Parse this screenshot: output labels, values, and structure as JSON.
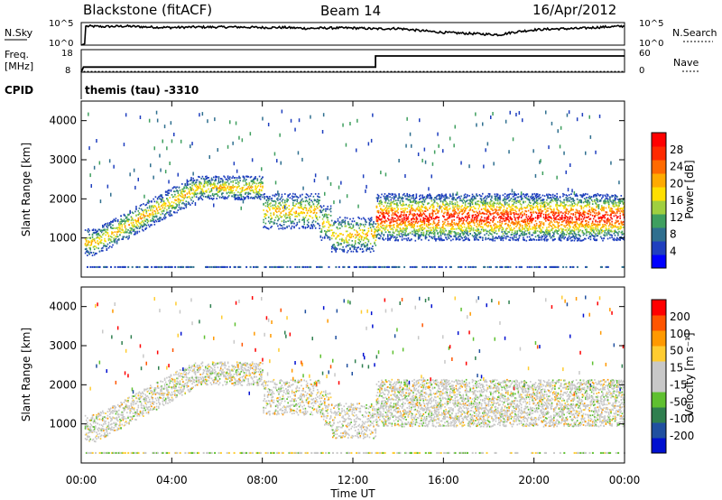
{
  "header": {
    "station": "Blackstone (fitACF)",
    "beam": "Beam 14",
    "date": "16/Apr/2012"
  },
  "cpid": {
    "label": "CPID",
    "value": "themis (tau) -3310"
  },
  "colors": {
    "power_scale": [
      "#0000ff",
      "#1f3fbf",
      "#2f6f8f",
      "#3f9f5f",
      "#9fcf3f",
      "#ffdf00",
      "#ffaa00",
      "#ff6a00",
      "#ff2a00",
      "#ff0000"
    ],
    "velocity_scale": [
      "#0010d0",
      "#2050a0",
      "#2f7f4f",
      "#5fc030",
      "#c8c8c8",
      "#c8c8c8",
      "#ffcc30",
      "#ff9900",
      "#ff5500",
      "#ff0000"
    ]
  },
  "chart_data": [
    {
      "type": "line",
      "name": "noise-panel",
      "left_label": "N.Sky",
      "right_label": "N.Search",
      "left_ticks": [
        "10^5",
        "10^0"
      ],
      "right_ticks": [
        "10^5",
        "10^0"
      ],
      "x_hours": [
        0,
        0.15,
        0.2,
        1,
        2,
        3,
        4,
        5,
        6,
        7,
        8,
        9,
        10,
        11,
        12,
        13,
        14,
        15,
        16,
        17,
        18,
        18.5,
        19,
        20,
        21,
        22,
        23,
        24
      ],
      "sky_log": [
        0.0,
        0.3,
        4.2,
        4.1,
        4.2,
        4.0,
        3.9,
        4.0,
        4.0,
        4.0,
        3.9,
        3.9,
        3.7,
        3.8,
        3.8,
        3.6,
        3.7,
        3.2,
        2.8,
        2.6,
        2.4,
        2.3,
        2.8,
        3.4,
        3.6,
        3.7,
        4.0,
        4.2
      ]
    },
    {
      "type": "line",
      "name": "frequency-panel",
      "left_label_top": "Freq.",
      "left_label_bottom": "[MHz]",
      "right_label": "Nave",
      "left_ticks": [
        "18",
        "8"
      ],
      "right_ticks": [
        "60",
        "0"
      ],
      "freq_steps": [
        [
          0,
          8
        ],
        [
          0.1,
          10.3
        ],
        [
          13,
          10.3
        ],
        [
          13,
          15.2
        ],
        [
          24,
          15.2
        ]
      ],
      "nave_level": 2
    },
    {
      "type": "heatmap",
      "name": "power-panel",
      "ylabel": "Slant Range [km]",
      "colorbar_label": "Power [dB]",
      "colorbar_ticks": [
        "28",
        "24",
        "20",
        "16",
        "12",
        "8",
        "4"
      ],
      "ylim": [
        0,
        4500
      ],
      "yticks": [
        "1000",
        "2000",
        "3000",
        "4000"
      ]
    },
    {
      "type": "heatmap",
      "name": "velocity-panel",
      "ylabel": "Slant Range [km]",
      "colorbar_label": "Velocity [m s⁻¹]",
      "colorbar_ticks": [
        "200",
        "100",
        "50",
        "15",
        "-15",
        "-50",
        "-100",
        "-200"
      ],
      "ylim": [
        0,
        4500
      ],
      "yticks": [
        "1000",
        "2000",
        "3000",
        "4000"
      ]
    }
  ],
  "xaxis": {
    "label": "Time UT",
    "ticks": [
      "00:00",
      "04:00",
      "08:00",
      "12:00",
      "16:00",
      "20:00",
      "00:00"
    ],
    "xlim_hours": [
      0,
      24
    ]
  }
}
